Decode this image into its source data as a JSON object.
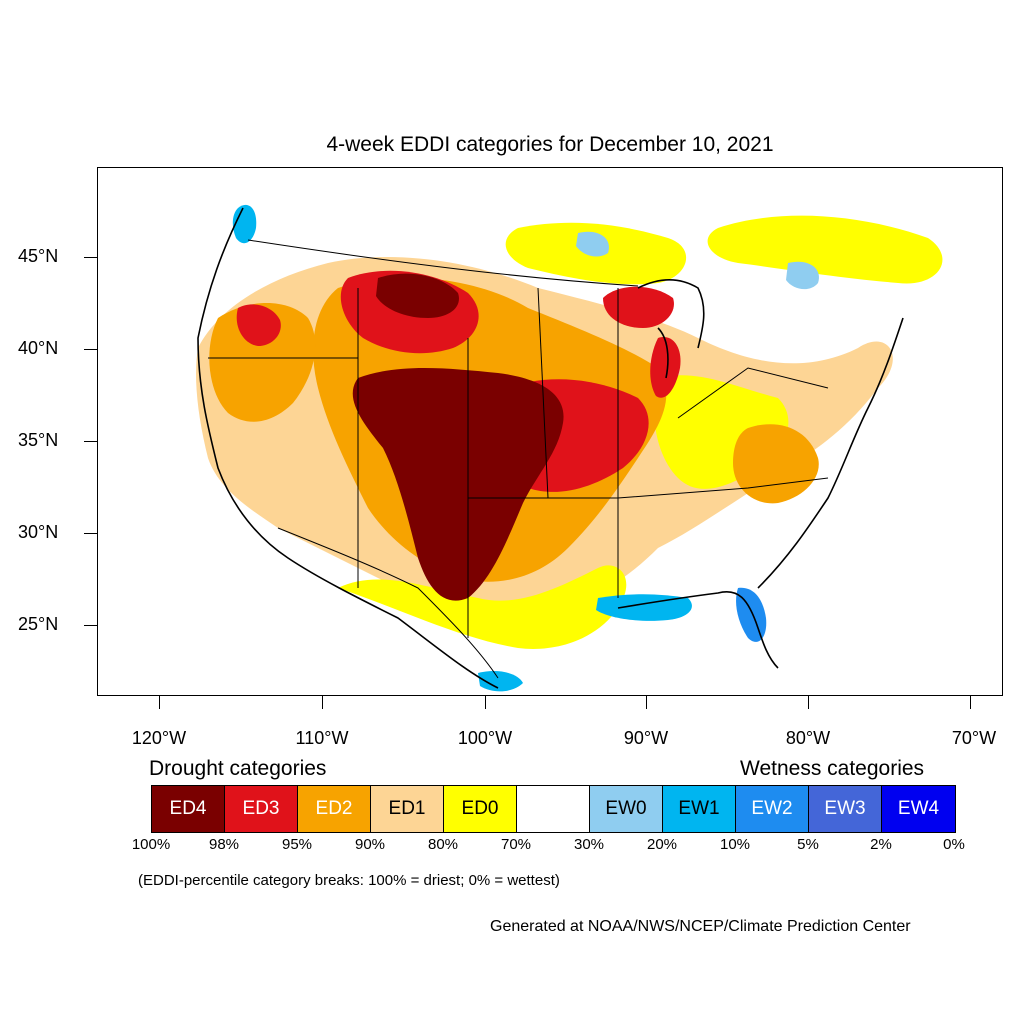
{
  "title": "4-week EDDI categories for December 10, 2021",
  "map": {
    "lat_labels": [
      "45°N",
      "40°N",
      "35°N",
      "30°N",
      "25°N"
    ],
    "lon_labels": [
      "120°W",
      "110°W",
      "100°W",
      "90°W",
      "80°W",
      "70°W"
    ],
    "colors": {
      "ED4": "#7a0000",
      "ED3": "#e0121a",
      "ED2": "#f7a300",
      "ED1": "#fdd595",
      "ED0": "#ffff00",
      "EW0": "#8fcdf0",
      "EW1": "#00b5f0",
      "EW2": "#1e8cf0",
      "EW3": "#4466d8",
      "EW4": "#0000f0"
    }
  },
  "legend": {
    "drought_heading": "Drought categories",
    "wetness_heading": "Wetness categories",
    "categories": [
      {
        "label": "ED4",
        "color": "#7a0000",
        "text_color": "#ffffff"
      },
      {
        "label": "ED3",
        "color": "#e0121a",
        "text_color": "#ffffff"
      },
      {
        "label": "ED2",
        "color": "#f7a300",
        "text_color": "#ffffff"
      },
      {
        "label": "ED1",
        "color": "#fdd595",
        "text_color": "#000000"
      },
      {
        "label": "ED0",
        "color": "#ffff00",
        "text_color": "#000000"
      },
      {
        "label": "",
        "color": "#ffffff",
        "text_color": "#000000"
      },
      {
        "label": "EW0",
        "color": "#8fcdf0",
        "text_color": "#000000"
      },
      {
        "label": "EW1",
        "color": "#00b5f0",
        "text_color": "#000000"
      },
      {
        "label": "EW2",
        "color": "#1e8cf0",
        "text_color": "#ffffff"
      },
      {
        "label": "EW3",
        "color": "#4466d8",
        "text_color": "#ffffff"
      },
      {
        "label": "EW4",
        "color": "#0000f0",
        "text_color": "#ffffff"
      }
    ],
    "percentiles": [
      "100%",
      "98%",
      "95%",
      "90%",
      "80%",
      "70%",
      "30%",
      "20%",
      "10%",
      "5%",
      "2%",
      "0%"
    ]
  },
  "note": "(EDDI-percentile category breaks: 100% = driest; 0% = wettest)",
  "credit": "Generated at NOAA/NWS/NCEP/Climate Prediction Center"
}
